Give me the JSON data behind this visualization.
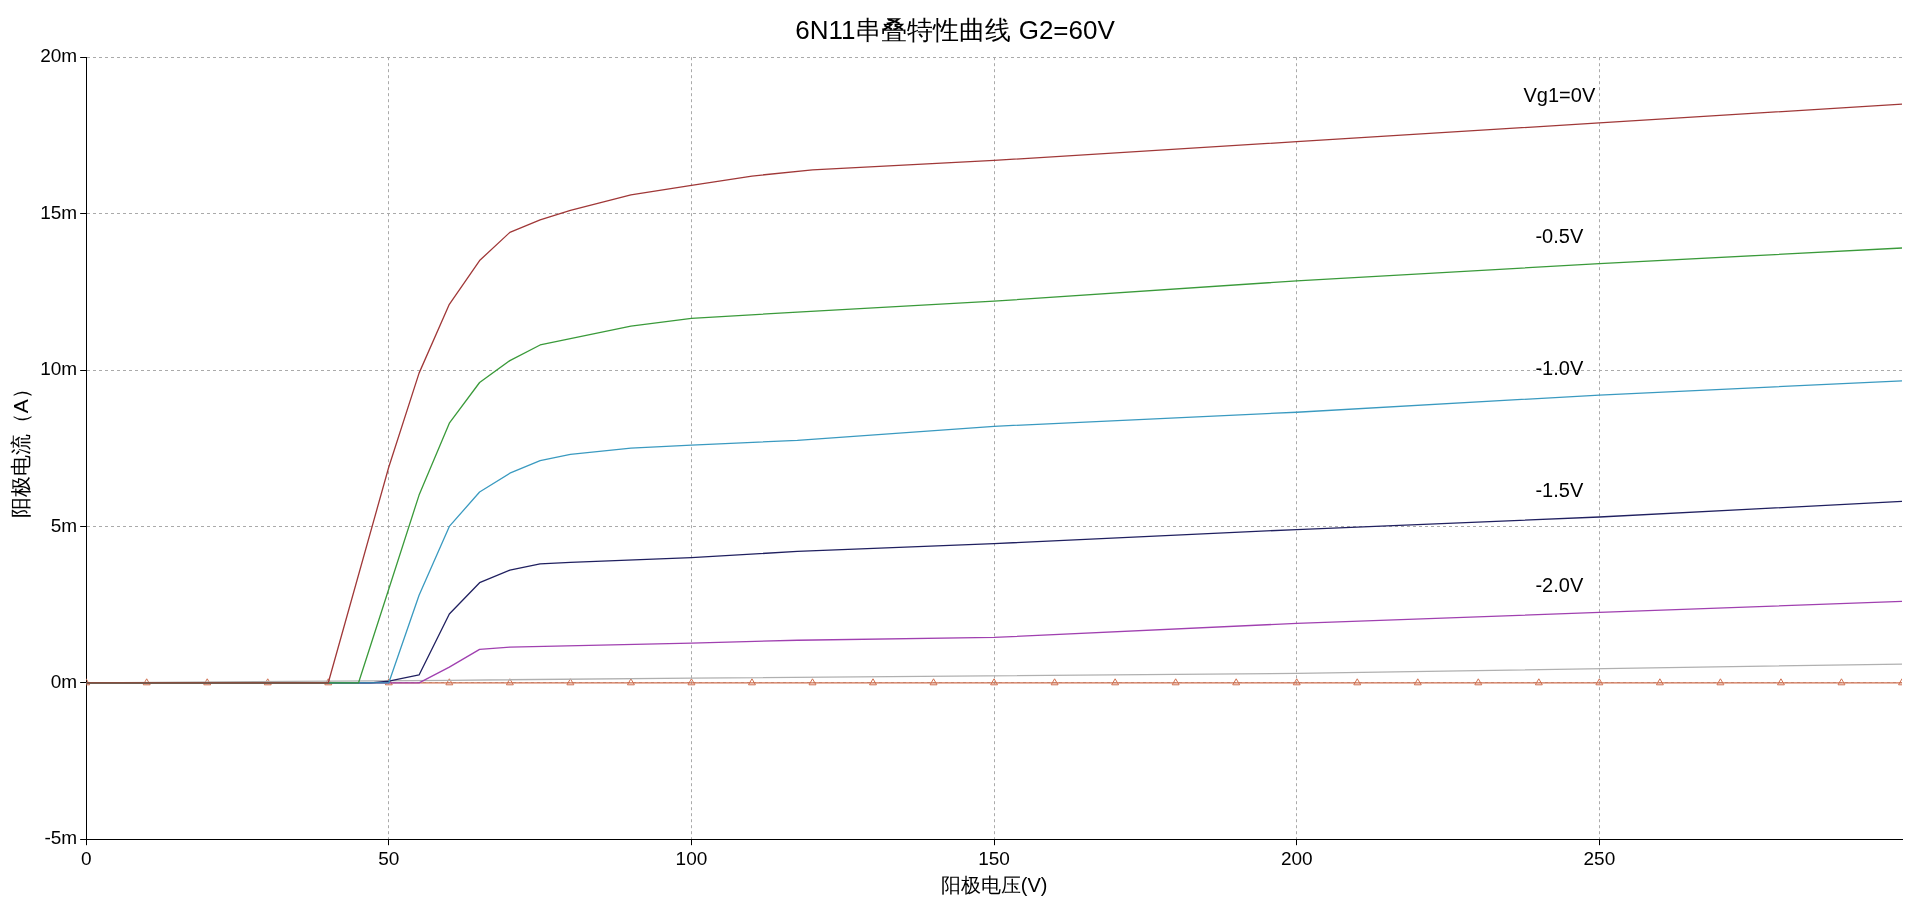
{
  "chart_data": {
    "type": "line",
    "title": "6N11串叠特性曲线 G2=60V",
    "xlabel": "阳极电压(V)",
    "ylabel": "阳极电流（A）",
    "xlim": [
      0,
      300
    ],
    "xticks": [
      0,
      50,
      100,
      150,
      200,
      250
    ],
    "ylim": [
      -5,
      20
    ],
    "yticks": [
      {
        "value": -5,
        "label": "-5m"
      },
      {
        "value": 0,
        "label": "0m"
      },
      {
        "value": 5,
        "label": "5m"
      },
      {
        "value": 10,
        "label": "10m"
      },
      {
        "value": 15,
        "label": "15m"
      },
      {
        "value": 20,
        "label": "20m"
      }
    ],
    "grid": true,
    "legend": false,
    "marker": "none",
    "line_style": "solid",
    "series": [
      {
        "name": "Vg1=0V",
        "color": "#a03838",
        "x": [
          0,
          40,
          50,
          55,
          60,
          65,
          70,
          75,
          80,
          90,
          100,
          110,
          120,
          150,
          200,
          250,
          300
        ],
        "values": [
          0,
          0,
          6.9,
          9.9,
          12.1,
          13.5,
          14.4,
          14.8,
          15.1,
          15.6,
          15.9,
          16.2,
          16.4,
          16.7,
          17.3,
          17.9,
          18.5
        ]
      },
      {
        "name": "-0.5V",
        "color": "#3a9a3a",
        "x": [
          0,
          45,
          50,
          55,
          60,
          65,
          70,
          75,
          80,
          90,
          100,
          117.5,
          150,
          200,
          250,
          300
        ],
        "values": [
          0,
          0,
          3.0,
          6.0,
          8.3,
          9.6,
          10.3,
          10.8,
          11.0,
          11.4,
          11.65,
          11.85,
          12.2,
          12.85,
          13.4,
          13.9
        ]
      },
      {
        "name": "-1.0V",
        "color": "#3a9ac0",
        "x": [
          0,
          50,
          55,
          60,
          65,
          70,
          75,
          80,
          90,
          100,
          117.5,
          150,
          200,
          250,
          300
        ],
        "values": [
          0,
          0,
          2.8,
          5.0,
          6.1,
          6.7,
          7.1,
          7.3,
          7.5,
          7.6,
          7.75,
          8.2,
          8.65,
          9.2,
          9.65
        ]
      },
      {
        "name": "-1.5V",
        "color": "#202060",
        "x": [
          0,
          47,
          50,
          55,
          60,
          65,
          70,
          75,
          80,
          100,
          117.5,
          150,
          200,
          250,
          300
        ],
        "values": [
          0,
          0,
          0.05,
          0.25,
          2.2,
          3.2,
          3.6,
          3.8,
          3.85,
          4.0,
          4.2,
          4.45,
          4.9,
          5.3,
          5.8
        ]
      },
      {
        "name": "-2.0V",
        "color": "#a040b0",
        "x": [
          0,
          55,
          60,
          65,
          70,
          100,
          117.5,
          150,
          200,
          250,
          300
        ],
        "values": [
          0,
          0,
          0.5,
          1.07,
          1.14,
          1.27,
          1.36,
          1.45,
          1.9,
          2.25,
          2.6
        ]
      },
      {
        "color": "#b0b0b0",
        "x": [
          0,
          60,
          100,
          200,
          300
        ],
        "values": [
          0,
          0.08,
          0.15,
          0.3,
          0.6
        ]
      },
      {
        "color": "#d07050",
        "marker": "triangle",
        "x": [
          0,
          10,
          20,
          30,
          40,
          50,
          60,
          70,
          80,
          90,
          100,
          110,
          120,
          130,
          140,
          150,
          160,
          170,
          180,
          190,
          200,
          210,
          220,
          230,
          240,
          250,
          260,
          270,
          280,
          290,
          300
        ],
        "values": [
          0,
          0,
          0,
          0,
          0,
          0,
          0,
          0,
          0,
          0,
          0,
          0,
          0,
          0,
          0,
          0,
          0,
          0,
          0,
          0,
          0,
          0,
          0,
          0,
          0,
          0,
          0,
          0,
          0,
          0,
          0
        ]
      }
    ]
  }
}
